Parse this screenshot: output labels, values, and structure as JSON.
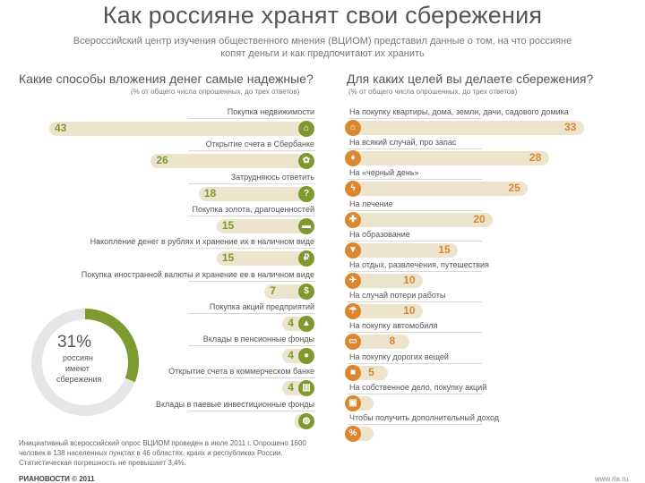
{
  "title": "Как россияне хранят свои сбережения",
  "subtitle_line1": "Всероссийский центр изучения общественного мнения (ВЦИОМ) представил данные о том, на что россияне",
  "subtitle_line2": "копят деньги и как предпочитают их хранить",
  "left_title": "Какие способы вложения денег самые надежные?",
  "left_note": "(% от общего числа опрошенных, до трех ответов)",
  "right_title": "Для каких целей вы делаете сбережения?",
  "right_note": "(% от общего числа опрошенных, до трех ответов)",
  "donut": {
    "pct": "31%",
    "line1": "россиян",
    "line2": "имеют",
    "line3": "сбережения",
    "value": 31
  },
  "footnote": "Инициативный всероссийский опрос ВЦИОМ проведен в июле 2011 г. Опрошено 1600 человек в 138 населенных пунктах в 46 областях, краях и республиках России. Статистическая погрешность не превышает 3,4%.",
  "brand": "РИАНОВОСТИ © 2011",
  "site": "www.ria.ru",
  "colors": {
    "left": "#7d9a2f",
    "right": "#dc8630",
    "bar": "#ece4cd",
    "donut_track": "#e6e6e6"
  },
  "chart_data": [
    {
      "type": "bar",
      "title": "Какие способы вложения денег самые надежные?",
      "categories": [
        "Покупка недвижимости",
        "Открытие счета в Сбербанке",
        "Затрудняюсь ответить",
        "Покупка золота, драгоценностей",
        "Накопление денег в рублях и хранение их в наличном виде",
        "Покупка иностранной валюты и хранение ее в наличном виде",
        "Покупка акций предприятий",
        "Вклады в пенсионные фонды",
        "Открытие счета в коммерческом банке",
        "Вклады в паевые инвестиционные фонды"
      ],
      "values": [
        43,
        26,
        18,
        15,
        15,
        7,
        4,
        4,
        4,
        2
      ],
      "icons": [
        "house-icon",
        "bank-leaf-icon",
        "question-icon",
        "gold-icon",
        "ruble-icon",
        "dollar-icon",
        "factory-icon",
        "piggy-icon",
        "bank-building-icon",
        "globe-icon"
      ],
      "xlim": [
        0,
        50
      ]
    },
    {
      "type": "bar",
      "title": "Для каких целей вы делаете сбережения?",
      "categories": [
        "На покупку квартиры, дома, земли, дачи, садового домика",
        "На всякий случай, про запас",
        "На «черный день»",
        "На лечение",
        "На образование",
        "На отдых, развлечения, путешествия",
        "На случай потери работы",
        "На покупку автомобиля",
        "На покупку дорогих вещей",
        "На собственное дело, покупку акций",
        "Чтобы получить дополнительный доход"
      ],
      "values": [
        33,
        28,
        25,
        20,
        15,
        10,
        10,
        8,
        5,
        3,
        3
      ],
      "icons": [
        "house-icon",
        "bag-icon",
        "lightning-icon",
        "medical-cross-icon",
        "graduation-icon",
        "plane-icon",
        "umbrella-icon",
        "car-icon",
        "gift-icon",
        "briefcase-icon",
        "percent-icon"
      ],
      "xlim": [
        0,
        40
      ]
    }
  ]
}
